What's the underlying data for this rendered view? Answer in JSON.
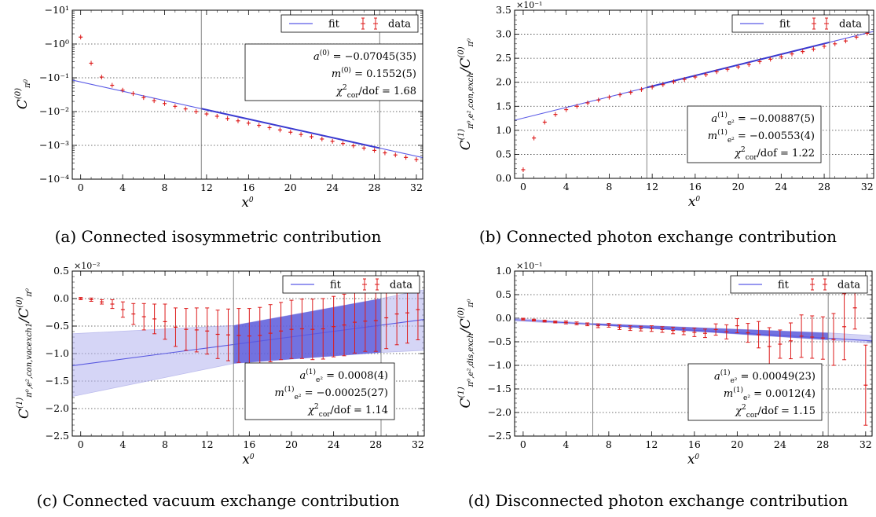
{
  "chart_data": [
    {
      "panel": "a",
      "type": "scatter",
      "caption": "(a) Connected isosymmetric contribution",
      "ylabel": "C_{π⁰}^{(0)}",
      "xlabel": "x⁰",
      "yscale": "symlog-negative",
      "y_exp_range": [
        -4,
        1
      ],
      "ytick_labels": [
        "−10¹",
        "−10⁰",
        "−10⁻¹",
        "−10⁻²",
        "−10⁻³",
        "−10⁻⁴"
      ],
      "xlim": [
        -0.8,
        32.6
      ],
      "xticks": [
        0,
        4,
        8,
        12,
        16,
        20,
        24,
        28,
        32
      ],
      "vlines": [
        11.5,
        28.5
      ],
      "legend": {
        "fit": "fit",
        "data": "data",
        "loc": "upper right"
      },
      "annotations": [
        "a^{(0)} = −0.07045(35)",
        "m^{(0)} = 0.1552(5)",
        "χ²_cor/dof = 1.68"
      ],
      "grid_y": true,
      "fit_line": {
        "x": [
          -0.8,
          32.6
        ],
        "y": [
          -0.0853,
          -0.000434
        ]
      },
      "data_x": [
        0,
        1,
        2,
        3,
        4,
        5,
        6,
        7,
        8,
        9,
        10,
        11,
        12,
        13,
        14,
        15,
        16,
        17,
        18,
        19,
        20,
        21,
        22,
        23,
        24,
        25,
        26,
        27,
        28,
        29,
        30,
        31,
        32
      ],
      "data_y": [
        -1.6,
        -0.27,
        -0.105,
        -0.06,
        -0.043,
        -0.034,
        -0.026,
        -0.021,
        -0.0173,
        -0.0143,
        -0.012,
        -0.01,
        -0.0085,
        -0.00728,
        -0.00623,
        -0.00532,
        -0.00456,
        -0.00391,
        -0.00335,
        -0.00286,
        -0.00245,
        -0.0021,
        -0.0018,
        -0.00154,
        -0.00132,
        -0.00113,
        -0.00097,
        -0.00083,
        -0.00071,
        -0.0006,
        -0.00052,
        -0.00044,
        -0.00038
      ]
    },
    {
      "panel": "b",
      "type": "scatter",
      "caption": "(b) Connected photon exchange contribution",
      "ylabel": "C_{π⁰,e²,con,exch}^{(1)} / C_{π⁰}^{(0)}",
      "xlabel": "x⁰",
      "yscale": "linear",
      "multiplier": "×10⁻¹",
      "ylim": [
        0,
        3.5
      ],
      "yticks": [
        0.0,
        0.5,
        1.0,
        1.5,
        2.0,
        2.5,
        3.0,
        3.5
      ],
      "ytick_labels": [
        "0.0",
        "0.5",
        "1.0",
        "1.5",
        "2.0",
        "2.5",
        "3.0",
        "3.5"
      ],
      "xlim": [
        -0.8,
        32.6
      ],
      "xticks": [
        0,
        4,
        8,
        12,
        16,
        20,
        24,
        28,
        32
      ],
      "vlines": [
        11.5,
        28.5
      ],
      "legend": {
        "fit": "fit",
        "data": "data",
        "loc": "upper right"
      },
      "annotations": [
        "a_{e²}^{(1)} = −0.00887(5)",
        "m_{e²}^{(1)} = −0.00553(4)",
        "χ²_cor/dof = 1.22"
      ],
      "grid_y": true,
      "fit_line": {
        "x": [
          -0.8,
          32.6
        ],
        "y": [
          1.21,
          3.06
        ]
      },
      "data_x": [
        0,
        1,
        2,
        3,
        4,
        5,
        6,
        7,
        8,
        9,
        10,
        11,
        12,
        13,
        14,
        15,
        16,
        17,
        18,
        19,
        20,
        21,
        22,
        23,
        24,
        25,
        26,
        27,
        28,
        29,
        30,
        31,
        32
      ],
      "data_y": [
        0.18,
        0.84,
        1.17,
        1.33,
        1.43,
        1.5,
        1.57,
        1.63,
        1.69,
        1.74,
        1.79,
        1.85,
        1.9,
        1.95,
        2.01,
        2.06,
        2.11,
        2.16,
        2.22,
        2.27,
        2.32,
        2.37,
        2.43,
        2.48,
        2.53,
        2.59,
        2.64,
        2.69,
        2.75,
        2.8,
        2.86,
        2.94,
        3.02
      ]
    },
    {
      "panel": "c",
      "type": "scatter",
      "caption": "(c) Connected vacuum exchange contribution",
      "ylabel": "C_{π⁰,e²,con,vacexch1}^{(1)} / C_{π⁰}^{(0)}",
      "xlabel": "x⁰",
      "yscale": "linear",
      "multiplier": "×10⁻²",
      "ylim": [
        -2.5,
        0.5
      ],
      "yticks": [
        -2.5,
        -2.0,
        -1.5,
        -1.0,
        -0.5,
        0.0,
        0.5
      ],
      "ytick_labels": [
        "−2.5",
        "−2.0",
        "−1.5",
        "−1.0",
        "−0.5",
        "0.0",
        "0.5"
      ],
      "xlim": [
        -0.8,
        32.6
      ],
      "xticks": [
        0,
        4,
        8,
        12,
        16,
        20,
        24,
        28,
        32
      ],
      "vlines": [
        14.5,
        28.5
      ],
      "legend": {
        "fit": "fit",
        "data": "data",
        "loc": "upper right"
      },
      "annotations": [
        "a_{e²}^{(1)} = 0.0008(4)",
        "m_{e²}^{(1)} = −0.00025(27)",
        "χ²_cor/dof = 1.14"
      ],
      "grid_y": true,
      "fit_line": {
        "x": [
          -0.8,
          32.6
        ],
        "y": [
          -1.22,
          -0.38
        ]
      },
      "fit_band": {
        "x": [
          -0.8,
          14.5,
          28.5,
          32.6
        ],
        "lower": [
          -1.78,
          -1.18,
          -0.98,
          -0.94
        ],
        "upper": [
          -0.64,
          -0.49,
          0.0,
          0.16
        ]
      },
      "fit_region": [
        14.5,
        28.5
      ],
      "data_x": [
        0,
        1,
        2,
        3,
        4,
        5,
        6,
        7,
        8,
        9,
        10,
        11,
        12,
        13,
        14,
        15,
        16,
        17,
        18,
        19,
        20,
        21,
        22,
        23,
        24,
        25,
        26,
        27,
        28,
        29,
        30,
        31,
        32
      ],
      "data_y": [
        0.0,
        -0.02,
        -0.06,
        -0.1,
        -0.2,
        -0.28,
        -0.33,
        -0.37,
        -0.42,
        -0.52,
        -0.56,
        -0.57,
        -0.59,
        -0.65,
        -0.66,
        -0.67,
        -0.68,
        -0.67,
        -0.63,
        -0.59,
        -0.56,
        -0.55,
        -0.56,
        -0.55,
        -0.51,
        -0.48,
        -0.43,
        -0.41,
        -0.4,
        -0.35,
        -0.28,
        -0.26,
        -0.2
      ],
      "data_err": [
        0.02,
        0.03,
        0.04,
        0.08,
        0.14,
        0.19,
        0.24,
        0.27,
        0.32,
        0.35,
        0.38,
        0.4,
        0.42,
        0.44,
        0.47,
        0.49,
        0.5,
        0.51,
        0.52,
        0.52,
        0.53,
        0.54,
        0.55,
        0.55,
        0.55,
        0.56,
        0.56,
        0.55,
        0.56,
        0.56,
        0.56,
        0.55,
        0.55
      ]
    },
    {
      "panel": "d",
      "type": "scatter",
      "caption": "(d) Disconnected photon exchange contribution",
      "ylabel": "C_{π⁰,e²,dis,exch}^{(1)} / C_{π⁰}^{(0)}",
      "xlabel": "x⁰",
      "yscale": "linear",
      "multiplier": "×10⁻¹",
      "ylim": [
        -2.5,
        1.0
      ],
      "yticks": [
        -2.5,
        -2.0,
        -1.5,
        -1.0,
        -0.5,
        0.0,
        0.5,
        1.0
      ],
      "ytick_labels": [
        "−2.5",
        "−2.0",
        "−1.5",
        "−1.0",
        "−0.5",
        "0.0",
        "0.5",
        "1.0"
      ],
      "xlim": [
        -0.8,
        32.6
      ],
      "xticks": [
        0,
        4,
        8,
        12,
        16,
        20,
        24,
        28,
        32
      ],
      "vlines": [
        6.5,
        28.5
      ],
      "legend": {
        "fit": "fit",
        "data": "data",
        "loc": "upper right"
      },
      "annotations": [
        "a_{e²}^{(1)} = 0.00049(23)",
        "m_{e²}^{(1)} = 0.0012(4)",
        "χ²_cor/dof = 1.15"
      ],
      "grid_y": true,
      "fit_line": {
        "x": [
          -0.8,
          32.6
        ],
        "y": [
          -0.03,
          -0.48
        ]
      },
      "fit_band": {
        "x": [
          -0.8,
          6.5,
          28.5,
          32.6
        ],
        "lower": [
          -0.06,
          -0.14,
          -0.46,
          -0.53
        ],
        "upper": [
          0.0,
          -0.11,
          -0.31,
          -0.37
        ]
      },
      "fit_region": [
        6.5,
        28.5
      ],
      "data_x": [
        0,
        1,
        2,
        3,
        4,
        5,
        6,
        7,
        8,
        9,
        10,
        11,
        12,
        13,
        14,
        15,
        16,
        17,
        18,
        19,
        20,
        21,
        22,
        23,
        24,
        25,
        26,
        27,
        28,
        29,
        30,
        31,
        32
      ],
      "data_y": [
        -0.02,
        -0.04,
        -0.06,
        -0.08,
        -0.09,
        -0.11,
        -0.13,
        -0.16,
        -0.15,
        -0.19,
        -0.21,
        -0.22,
        -0.22,
        -0.24,
        -0.26,
        -0.28,
        -0.3,
        -0.32,
        -0.24,
        -0.29,
        -0.16,
        -0.31,
        -0.35,
        -0.6,
        -0.55,
        -0.48,
        -0.38,
        -0.4,
        -0.42,
        -0.45,
        -0.18,
        0.22,
        -1.42
      ],
      "data_err": [
        0.02,
        0.02,
        0.02,
        0.02,
        0.03,
        0.03,
        0.03,
        0.04,
        0.04,
        0.05,
        0.05,
        0.05,
        0.06,
        0.06,
        0.07,
        0.07,
        0.09,
        0.09,
        0.12,
        0.15,
        0.15,
        0.2,
        0.28,
        0.4,
        0.3,
        0.38,
        0.45,
        0.45,
        0.45,
        0.55,
        0.7,
        0.45,
        0.85
      ]
    }
  ]
}
